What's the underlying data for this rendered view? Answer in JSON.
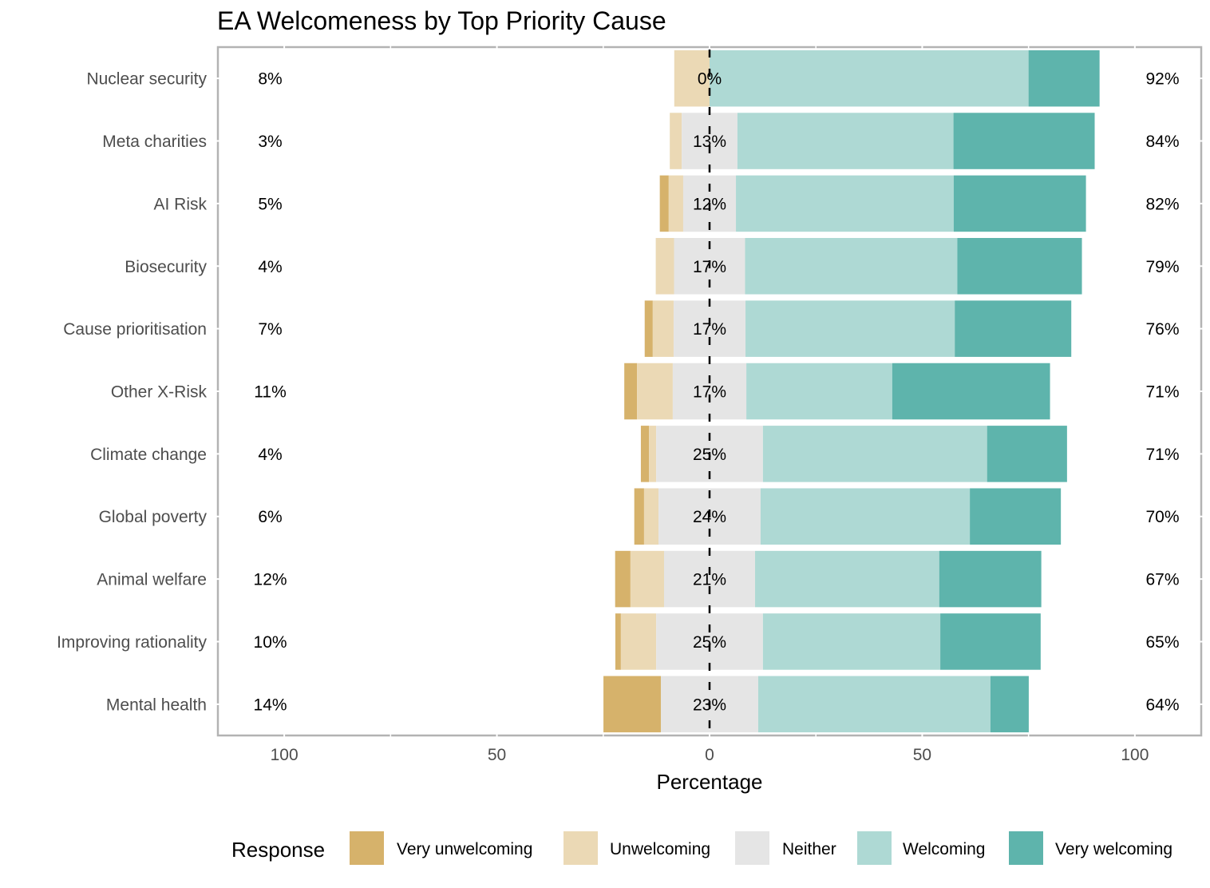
{
  "chart_data": {
    "type": "bar",
    "orientation": "horizontal",
    "stacking": "diverging",
    "title": "EA Welcomeness by Top Priority Cause",
    "xlabel": "Percentage",
    "ylabel": "",
    "xlim": [
      -115.6,
      115.6
    ],
    "xticks": [
      -100,
      -50,
      0,
      50,
      100
    ],
    "xtick_labels": [
      "100",
      "50",
      "0",
      "50",
      "100"
    ],
    "grid": true,
    "legend": {
      "title": "Response",
      "position": "bottom",
      "entries": [
        "Very unwelcoming",
        "Unwelcoming",
        "Neither",
        "Welcoming",
        "Very welcoming"
      ]
    },
    "colors": {
      "Very unwelcoming": "#d6b26b",
      "Unwelcoming": "#ebd9b5",
      "Neither": "#e5e5e5",
      "Welcoming": "#aed9d4",
      "Very welcoming": "#5eb4ac"
    },
    "categories": [
      "Nuclear security",
      "Meta charities",
      "AI Risk",
      "Biosecurity",
      "Cause prioritisation",
      "Other X-Risk",
      "Climate change",
      "Global poverty",
      "Animal welfare",
      "Improving rationality",
      "Mental health"
    ],
    "series": [
      {
        "name": "Very unwelcoming",
        "values": [
          0,
          0,
          2.1,
          0,
          1.9,
          3.0,
          1.9,
          2.3,
          3.6,
          1.3,
          13.5
        ]
      },
      {
        "name": "Unwelcoming",
        "values": [
          8.3,
          2.8,
          3.4,
          4.3,
          4.9,
          8.4,
          1.7,
          3.4,
          7.9,
          8.3,
          0
        ]
      },
      {
        "name": "Neither",
        "values": [
          0,
          13.1,
          12.4,
          16.7,
          16.9,
          17.3,
          25.1,
          24.0,
          21.4,
          25.1,
          22.9
        ]
      },
      {
        "name": "Welcoming",
        "values": [
          75.0,
          50.8,
          51.2,
          49.9,
          49.2,
          34.3,
          52.7,
          49.2,
          43.3,
          41.7,
          54.6
        ]
      },
      {
        "name": "Very welcoming",
        "values": [
          16.7,
          33.2,
          31.1,
          29.3,
          27.4,
          37.1,
          18.8,
          21.4,
          24.0,
          23.6,
          9.0
        ]
      }
    ],
    "annotations": {
      "left_pct": [
        "8%",
        "3%",
        "5%",
        "4%",
        "7%",
        "11%",
        "4%",
        "6%",
        "12%",
        "10%",
        "14%"
      ],
      "center_pct": [
        "0%",
        "13%",
        "12%",
        "17%",
        "17%",
        "17%",
        "25%",
        "24%",
        "21%",
        "25%",
        "23%"
      ],
      "right_pct": [
        "92%",
        "84%",
        "82%",
        "79%",
        "76%",
        "71%",
        "71%",
        "70%",
        "67%",
        "65%",
        "64%"
      ]
    }
  }
}
